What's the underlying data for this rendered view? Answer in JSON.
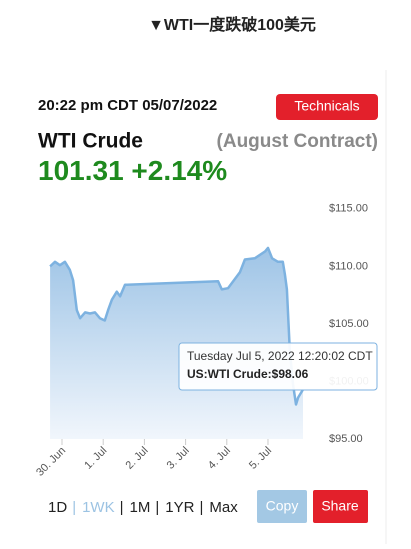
{
  "header": {
    "title": "▼WTI一度跌破100美元"
  },
  "widget": {
    "timestamp": "20:22 pm CDT 05/07/2022",
    "technicals_button": "Technicals",
    "name": "WTI Crude",
    "contract": "(August Contract)",
    "price": "101.31",
    "change": "+2.14%",
    "tooltip": {
      "date": "Tuesday Jul 5, 2022 12:20:02 CDT",
      "value": "US:WTI Crude:$98.06"
    },
    "ranges": [
      "1D",
      "1WK",
      "1M",
      "1YR",
      "Max"
    ],
    "separator": "|",
    "copy_button": "Copy",
    "share_button": "Share"
  },
  "chart_data": {
    "type": "area",
    "color": "#7db2e0",
    "x": [
      -0.29,
      -0.17,
      -0.05,
      0.07,
      0.19,
      0.27,
      0.36,
      0.44,
      0.56,
      0.68,
      0.8,
      0.92,
      1.04,
      1.12,
      1.21,
      1.33,
      1.41,
      1.53,
      3.79,
      3.88,
      4.03,
      4.32,
      4.44,
      4.68,
      4.93,
      5.0,
      5.1,
      5.24,
      5.36,
      5.41,
      5.46,
      5.53,
      5.61,
      5.68,
      5.73,
      5.85
    ],
    "values": [
      110.0,
      110.4,
      110.1,
      110.4,
      109.7,
      108.8,
      106.2,
      105.5,
      106.0,
      105.9,
      106.0,
      105.5,
      105.3,
      106.2,
      107.1,
      107.8,
      107.4,
      108.4,
      108.7,
      108.0,
      108.1,
      109.5,
      110.6,
      110.7,
      111.3,
      111.6,
      110.7,
      110.4,
      110.4,
      109.3,
      108.0,
      102.7,
      99.7,
      98.0,
      98.6,
      99.3
    ],
    "xlim": [
      -0.34,
      6.02
    ],
    "ylim": [
      95,
      116.2
    ],
    "xticks": [
      {
        "value": 0,
        "label": "30. Jun"
      },
      {
        "value": 1,
        "label": "1. Jul"
      },
      {
        "value": 2,
        "label": "2. Jul"
      },
      {
        "value": 3,
        "label": "3. Jul"
      },
      {
        "value": 4,
        "label": "4. Jul"
      },
      {
        "value": 5,
        "label": "5. Jul"
      }
    ],
    "yticks": [
      {
        "value": 95,
        "label": "$95.00"
      },
      {
        "value": 100,
        "label": "$100.00"
      },
      {
        "value": 105,
        "label": "$105.00"
      },
      {
        "value": 110,
        "label": "$110.00"
      },
      {
        "value": 115,
        "label": "$115.00"
      }
    ]
  }
}
